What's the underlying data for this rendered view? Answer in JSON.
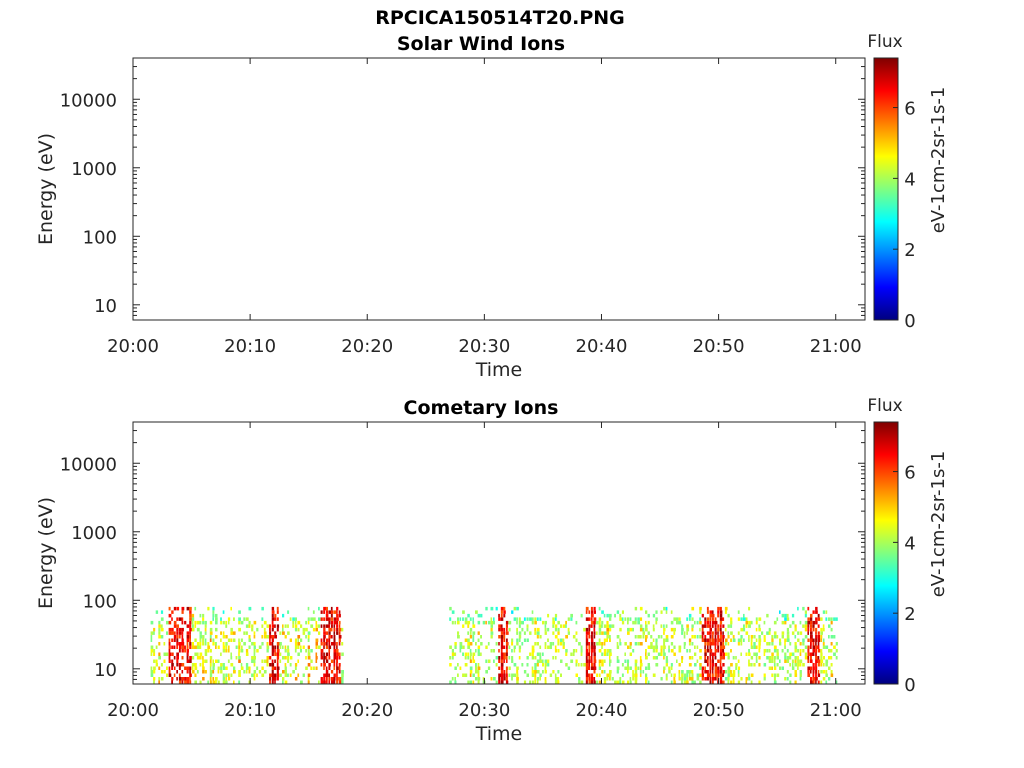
{
  "figure_title": "RPCICA150514T20.PNG",
  "colorbar": {
    "colors": [
      "#00007f",
      "#0000ff",
      "#0080ff",
      "#00ffff",
      "#80ff80",
      "#ffff00",
      "#ff8000",
      "#ff0000",
      "#7f0000"
    ]
  },
  "chart_data": [
    {
      "type": "heatmap",
      "title": "Solar Wind Ions",
      "xlabel": "Time",
      "ylabel": "Energy (eV)",
      "x_ticks": [
        "20:00",
        "20:10",
        "20:20",
        "20:30",
        "20:40",
        "20:50",
        "21:00"
      ],
      "x_range_minutes": [
        0,
        62.5
      ],
      "y_scale": "log",
      "y_ticks": [
        "10",
        "100",
        "1000",
        "10000"
      ],
      "y_range": [
        6,
        40000
      ],
      "colorbar_title": "Flux",
      "colorbar_label": "eV-1cm-2sr-1s-1",
      "colorbar_ticks": [
        "0",
        "2",
        "4",
        "6"
      ],
      "colorbar_range": [
        0,
        7.4
      ],
      "segments": []
    },
    {
      "type": "heatmap",
      "title": "Cometary Ions",
      "xlabel": "Time",
      "ylabel": "Energy (eV)",
      "x_ticks": [
        "20:00",
        "20:10",
        "20:20",
        "20:30",
        "20:40",
        "20:50",
        "21:00"
      ],
      "x_range_minutes": [
        0,
        62.5
      ],
      "y_scale": "log",
      "y_ticks": [
        "10",
        "100",
        "1000",
        "10000"
      ],
      "y_range": [
        6,
        40000
      ],
      "colorbar_title": "Flux",
      "colorbar_label": "eV-1cm-2sr-1s-1",
      "colorbar_ticks": [
        "0",
        "2",
        "4",
        "6"
      ],
      "colorbar_range": [
        0,
        7.4
      ],
      "segments": [
        {
          "start_minute": 1.5,
          "end_minute": 18,
          "energy_range": [
            6,
            80
          ],
          "flux_range": [
            3,
            7
          ],
          "peaks_minute": [
            3.5,
            4.5,
            12,
            16.5,
            17.2
          ]
        },
        {
          "start_minute": 27,
          "end_minute": 60,
          "energy_range": [
            6,
            80
          ],
          "flux_range": [
            3,
            6.5
          ],
          "peaks_minute": [
            31.5,
            39,
            49,
            50,
            58
          ]
        }
      ]
    }
  ]
}
